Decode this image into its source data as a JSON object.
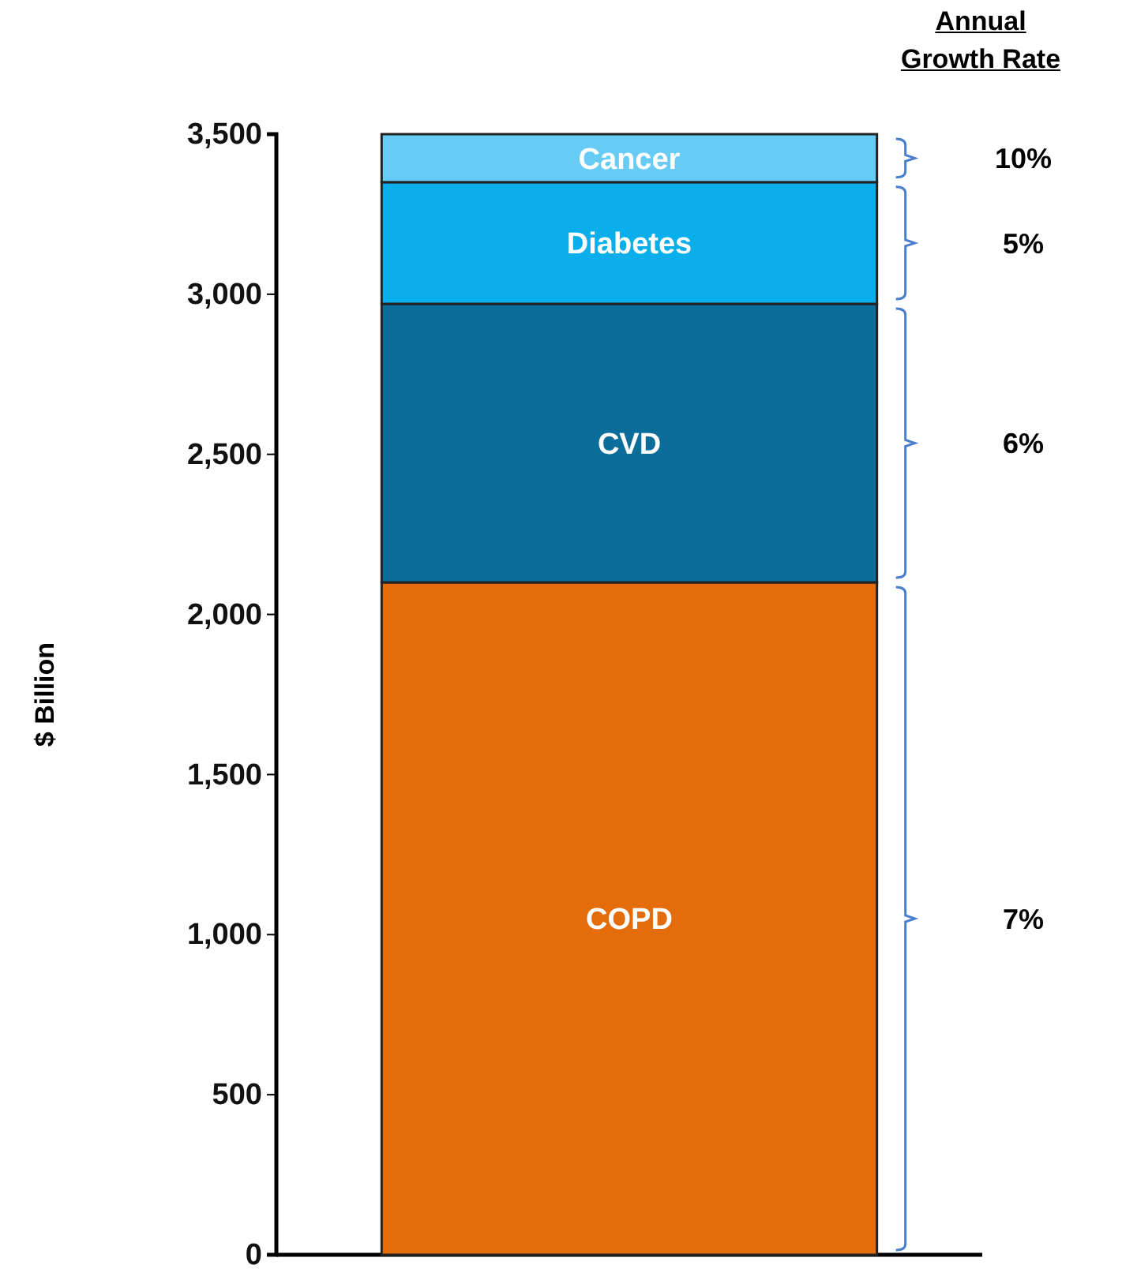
{
  "chart_data": {
    "type": "bar",
    "stacked": true,
    "ylabel": "$ Billion",
    "categories": [
      null
    ],
    "series": [
      {
        "name": "COPD",
        "color": "#e46c0a",
        "values": [
          2100
        ]
      },
      {
        "name": "CVD",
        "color": "#0a6d9a",
        "values": [
          870
        ]
      },
      {
        "name": "Diabetes",
        "color": "#0aaeea",
        "values": [
          380
        ]
      },
      {
        "name": "Cancer",
        "color": "#66ccf5",
        "values": [
          150
        ]
      }
    ],
    "ylim": [
      0,
      3500
    ],
    "yticks": [
      {
        "value": 0,
        "label": "0"
      },
      {
        "value": 500,
        "label": "500"
      },
      {
        "value": 1000,
        "label": "1,000"
      },
      {
        "value": 1500,
        "label": "1,500"
      },
      {
        "value": 2000,
        "label": "2,000"
      },
      {
        "value": 2500,
        "label": "2,500"
      },
      {
        "value": 3000,
        "label": "3,000"
      },
      {
        "value": 3500,
        "label": "3,500"
      }
    ],
    "grid": false,
    "annotations": [
      "Annual Growth Rate",
      "7%",
      "6%",
      "5%",
      "10%"
    ]
  }
}
